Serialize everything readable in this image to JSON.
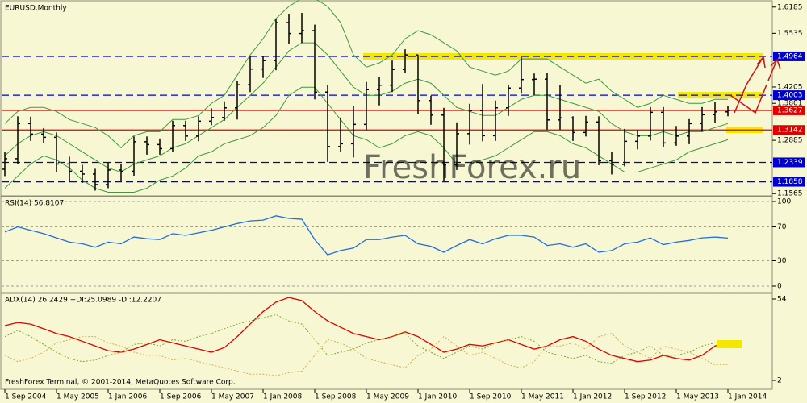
{
  "chart_data": [
    {
      "type": "ohlc",
      "title": "EURUSD,Monthly",
      "color": "#000000",
      "x": [
        "2004-09",
        "2004-11",
        "2005-01",
        "2005-03",
        "2005-05",
        "2005-07",
        "2005-09",
        "2005-11",
        "2006-01",
        "2006-03",
        "2006-05",
        "2006-07",
        "2006-09",
        "2006-11",
        "2007-01",
        "2007-03",
        "2007-05",
        "2007-07",
        "2007-09",
        "2007-11",
        "2008-01",
        "2008-03",
        "2008-05",
        "2008-07",
        "2008-09",
        "2008-11",
        "2009-01",
        "2009-03",
        "2009-05",
        "2009-07",
        "2009-09",
        "2009-11",
        "2010-01",
        "2010-03",
        "2010-05",
        "2010-07",
        "2010-09",
        "2010-11",
        "2011-01",
        "2011-03",
        "2011-05",
        "2011-07",
        "2011-09",
        "2011-11",
        "2012-01",
        "2012-03",
        "2012-05",
        "2012-07",
        "2012-09",
        "2012-11",
        "2013-01",
        "2013-03",
        "2013-05",
        "2013-07",
        "2013-09",
        "2013-11",
        "2014-01"
      ],
      "open": [
        1.217,
        1.243,
        1.33,
        1.304,
        1.296,
        1.23,
        1.212,
        1.205,
        1.179,
        1.215,
        1.212,
        1.285,
        1.278,
        1.268,
        1.325,
        1.299,
        1.336,
        1.345,
        1.369,
        1.426,
        1.465,
        1.486,
        1.58,
        1.553,
        1.56,
        1.408,
        1.273,
        1.28,
        1.328,
        1.414,
        1.425,
        1.464,
        1.5,
        1.387,
        1.351,
        1.228,
        1.305,
        1.362,
        1.3,
        1.369,
        1.418,
        1.439,
        1.44,
        1.339,
        1.344,
        1.308,
        1.334,
        1.238,
        1.229,
        1.286,
        1.299,
        1.358,
        1.282,
        1.299,
        1.33,
        1.352,
        1.359
      ],
      "high": [
        1.259,
        1.348,
        1.347,
        1.319,
        1.308,
        1.248,
        1.228,
        1.218,
        1.233,
        1.23,
        1.298,
        1.298,
        1.293,
        1.337,
        1.337,
        1.348,
        1.368,
        1.385,
        1.435,
        1.497,
        1.497,
        1.59,
        1.602,
        1.604,
        1.575,
        1.425,
        1.345,
        1.374,
        1.433,
        1.445,
        1.486,
        1.514,
        1.5,
        1.399,
        1.369,
        1.333,
        1.379,
        1.428,
        1.387,
        1.425,
        1.494,
        1.454,
        1.455,
        1.425,
        1.348,
        1.349,
        1.348,
        1.259,
        1.317,
        1.314,
        1.371,
        1.371,
        1.324,
        1.341,
        1.371,
        1.383,
        1.374
      ],
      "low": [
        1.2,
        1.229,
        1.287,
        1.281,
        1.21,
        1.188,
        1.183,
        1.164,
        1.17,
        1.188,
        1.201,
        1.253,
        1.253,
        1.26,
        1.287,
        1.286,
        1.326,
        1.337,
        1.34,
        1.408,
        1.443,
        1.462,
        1.528,
        1.53,
        1.39,
        1.235,
        1.26,
        1.246,
        1.314,
        1.375,
        1.408,
        1.455,
        1.353,
        1.327,
        1.188,
        1.215,
        1.278,
        1.286,
        1.287,
        1.349,
        1.404,
        1.401,
        1.315,
        1.315,
        1.287,
        1.298,
        1.227,
        1.204,
        1.224,
        1.266,
        1.288,
        1.271,
        1.275,
        1.279,
        1.31,
        1.332,
        1.348
      ],
      "close": [
        1.243,
        1.33,
        1.304,
        1.296,
        1.23,
        1.212,
        1.205,
        1.179,
        1.215,
        1.212,
        1.285,
        1.278,
        1.268,
        1.325,
        1.299,
        1.336,
        1.345,
        1.369,
        1.426,
        1.465,
        1.486,
        1.58,
        1.553,
        1.56,
        1.408,
        1.273,
        1.28,
        1.328,
        1.414,
        1.425,
        1.464,
        1.5,
        1.387,
        1.351,
        1.228,
        1.305,
        1.362,
        1.3,
        1.369,
        1.418,
        1.439,
        1.44,
        1.339,
        1.344,
        1.308,
        1.334,
        1.238,
        1.229,
        1.286,
        1.299,
        1.358,
        1.282,
        1.299,
        1.33,
        1.352,
        1.359,
        1.3627
      ],
      "overlays": [
        {
          "color": "#3c9a3c",
          "values": [
            1.33,
            1.36,
            1.37,
            1.37,
            1.36,
            1.34,
            1.33,
            1.32,
            1.3,
            1.27,
            1.3,
            1.31,
            1.31,
            1.34,
            1.34,
            1.35,
            1.38,
            1.4,
            1.45,
            1.5,
            1.54,
            1.59,
            1.62,
            1.64,
            1.64,
            1.62,
            1.58,
            1.5,
            1.47,
            1.48,
            1.5,
            1.54,
            1.56,
            1.55,
            1.53,
            1.51,
            1.47,
            1.46,
            1.45,
            1.46,
            1.49,
            1.49,
            1.49,
            1.47,
            1.45,
            1.43,
            1.44,
            1.41,
            1.39,
            1.37,
            1.38,
            1.4,
            1.39,
            1.38,
            1.38,
            1.39,
            1.39
          ]
        },
        {
          "color": "#3c9a3c",
          "values": [
            1.25,
            1.28,
            1.3,
            1.31,
            1.3,
            1.28,
            1.26,
            1.24,
            1.22,
            1.21,
            1.23,
            1.24,
            1.25,
            1.27,
            1.28,
            1.3,
            1.32,
            1.34,
            1.37,
            1.4,
            1.43,
            1.47,
            1.51,
            1.53,
            1.53,
            1.5,
            1.46,
            1.42,
            1.4,
            1.4,
            1.41,
            1.43,
            1.44,
            1.43,
            1.4,
            1.37,
            1.36,
            1.35,
            1.35,
            1.37,
            1.39,
            1.4,
            1.4,
            1.39,
            1.38,
            1.37,
            1.36,
            1.33,
            1.31,
            1.3,
            1.3,
            1.31,
            1.3,
            1.31,
            1.31,
            1.32,
            1.33
          ]
        },
        {
          "color": "#3c9a3c",
          "values": [
            1.17,
            1.2,
            1.23,
            1.25,
            1.24,
            1.22,
            1.19,
            1.17,
            1.16,
            1.16,
            1.16,
            1.17,
            1.19,
            1.2,
            1.22,
            1.25,
            1.26,
            1.28,
            1.29,
            1.3,
            1.32,
            1.35,
            1.4,
            1.42,
            1.42,
            1.38,
            1.34,
            1.3,
            1.29,
            1.27,
            1.28,
            1.3,
            1.31,
            1.3,
            1.27,
            1.23,
            1.23,
            1.24,
            1.25,
            1.27,
            1.29,
            1.31,
            1.31,
            1.3,
            1.28,
            1.27,
            1.25,
            1.23,
            1.21,
            1.21,
            1.22,
            1.23,
            1.24,
            1.26,
            1.27,
            1.28,
            1.29
          ]
        }
      ],
      "ylim": [
        1.155,
        1.632
      ],
      "yticks": [
        1.6185,
        1.5535,
        1.4205,
        1.3801,
        1.2885,
        1.1565
      ],
      "levels": [
        {
          "value": 1.4964,
          "color": "#0000cc",
          "style": "dashed"
        },
        {
          "value": 1.4003,
          "color": "#0000cc",
          "style": "dashed"
        },
        {
          "value": 1.3627,
          "color": "#e00000",
          "style": "solid"
        },
        {
          "value": 1.3142,
          "color": "#e00000",
          "style": "solid"
        },
        {
          "value": 1.2339,
          "color": "#0000cc",
          "style": "dashed"
        },
        {
          "value": 1.1858,
          "color": "#0000cc",
          "style": "dashed"
        }
      ],
      "xticks": [
        {
          "value": "2004-09",
          "label": "1 Sep 2004"
        },
        {
          "value": "2005-05",
          "label": "1 May 2005"
        },
        {
          "value": "2006-01",
          "label": "1 Jan 2006"
        },
        {
          "value": "2006-09",
          "label": "1 Sep 2006"
        },
        {
          "value": "2007-05",
          "label": "1 May 2007"
        },
        {
          "value": "2008-01",
          "label": "1 Jan 2008"
        },
        {
          "value": "2008-09",
          "label": "1 Sep 2008"
        },
        {
          "value": "2009-05",
          "label": "1 May 2009"
        },
        {
          "value": "2010-01",
          "label": "1 Jan 2010"
        },
        {
          "value": "2010-09",
          "label": "1 Sep 2010"
        },
        {
          "value": "2011-05",
          "label": "1 May 2011"
        },
        {
          "value": "2012-01",
          "label": "1 Jan 2012"
        },
        {
          "value": "2012-09",
          "label": "1 Sep 2012"
        },
        {
          "value": "2013-05",
          "label": "1 May 2013"
        },
        {
          "value": "2014-01",
          "label": "1 Jan 2014"
        }
      ]
    },
    {
      "type": "line",
      "title": "RSI(14) 56.8107",
      "color": "#1e6fe0",
      "values": [
        64,
        70,
        66,
        62,
        57,
        52,
        50,
        46,
        52,
        50,
        58,
        56,
        55,
        62,
        60,
        63,
        66,
        70,
        74,
        77,
        78,
        83,
        80,
        79,
        55,
        37,
        42,
        45,
        55,
        55,
        58,
        60,
        50,
        47,
        40,
        48,
        55,
        50,
        56,
        60,
        60,
        58,
        48,
        50,
        46,
        50,
        40,
        42,
        50,
        52,
        57,
        49,
        52,
        54,
        57,
        58,
        56.8107
      ],
      "ylim": [
        0,
        100
      ],
      "yticks": [
        0,
        30,
        70,
        100
      ],
      "grid": true
    },
    {
      "type": "line",
      "title": "ADX(14) 26.2429 +DI:25.0989 -DI:12.2207",
      "series": [
        {
          "color": "#e00000",
          "style": "solid",
          "values": [
            37,
            39,
            38,
            35,
            32,
            30,
            27,
            24,
            21,
            20,
            22,
            25,
            28,
            26,
            24,
            22,
            20,
            23,
            30,
            38,
            46,
            52,
            55,
            53,
            46,
            40,
            36,
            32,
            30,
            28,
            30,
            33,
            30,
            25,
            20,
            22,
            25,
            24,
            26,
            28,
            25,
            22,
            24,
            28,
            30,
            27,
            22,
            18,
            16,
            14,
            15,
            18,
            16,
            15,
            18,
            24,
            26.2429
          ]
        },
        {
          "color": "#7aa828",
          "style": "dotted",
          "values": [
            30,
            34,
            30,
            25,
            20,
            16,
            14,
            15,
            18,
            20,
            25,
            26,
            24,
            28,
            27,
            30,
            32,
            35,
            38,
            40,
            42,
            44,
            40,
            38,
            28,
            18,
            20,
            22,
            26,
            28,
            30,
            32,
            24,
            20,
            16,
            20,
            24,
            22,
            26,
            28,
            30,
            27,
            20,
            18,
            16,
            18,
            14,
            13,
            18,
            20,
            24,
            18,
            18,
            20,
            24,
            26,
            25.0989
          ]
        },
        {
          "color": "#d2b048",
          "style": "dotted",
          "values": [
            18,
            14,
            16,
            20,
            26,
            28,
            30,
            30,
            26,
            24,
            20,
            18,
            18,
            15,
            16,
            14,
            12,
            10,
            8,
            6,
            6,
            5,
            7,
            8,
            18,
            28,
            26,
            22,
            16,
            14,
            12,
            10,
            18,
            22,
            30,
            24,
            18,
            20,
            16,
            12,
            10,
            14,
            24,
            24,
            26,
            22,
            30,
            32,
            24,
            20,
            16,
            24,
            22,
            20,
            16,
            12,
            12.2207
          ]
        }
      ],
      "ylim": [
        2,
        54
      ],
      "yticks": [
        2,
        54
      ]
    }
  ],
  "watermark": "FreshForex.ru",
  "footer": "FreshForex Terminal, © 2001-2014, MetaQuotes Software Corp."
}
